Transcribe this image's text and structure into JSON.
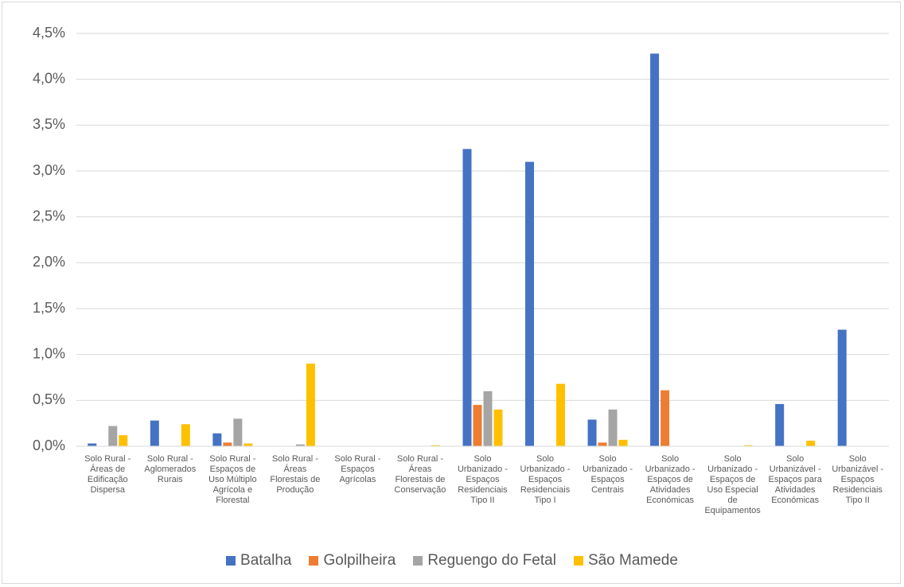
{
  "chart_data": {
    "type": "bar",
    "categories": [
      "Solo Rural - Áreas de Edificação Dispersa",
      "Solo Rural - Aglomerados Rurais",
      "Solo Rural - Espaços de Uso Múltiplo Agrícola e Florestal",
      "Solo Rural - Áreas Florestais de Produção",
      "Solo Rural - Espaços Agrícolas",
      "Solo Rural - Áreas Florestais de Conservação",
      "Solo Urbanizado - Espaços Residenciais Tipo II",
      "Solo Urbanizado - Espaços Residenciais Tipo I",
      "Solo Urbanizado - Espaços Centrais",
      "Solo Urbanizado - Espaços de Atividades Económicas",
      "Solo Urbanizado - Espaços de Uso Especial de Equipamentos",
      "Solo Urbanizável - Espaços para Atividades Económicas",
      "Solo Urbanizável - Espaços Residenciais Tipo II"
    ],
    "series": [
      {
        "name": "Batalha",
        "color": "#4472c4",
        "values": [
          0.03,
          0.28,
          0.14,
          0,
          0,
          0,
          3.24,
          3.1,
          0.29,
          4.28,
          0,
          0.46,
          1.27
        ]
      },
      {
        "name": "Golpilheira",
        "color": "#ed7d31",
        "values": [
          0,
          0,
          0.04,
          0,
          0,
          0,
          0.45,
          0,
          0.04,
          0.61,
          0,
          0,
          0
        ]
      },
      {
        "name": "Reguengo do Fetal",
        "color": "#a5a5a5",
        "values": [
          0.22,
          0,
          0.3,
          0.02,
          0,
          0,
          0.6,
          0,
          0.4,
          0,
          0,
          0,
          0
        ]
      },
      {
        "name": "São Mamede",
        "color": "#ffc000",
        "values": [
          0.12,
          0.24,
          0.03,
          0.9,
          0,
          0.01,
          0.4,
          0.68,
          0.07,
          0,
          0.01,
          0.06,
          0
        ]
      }
    ],
    "ylim": [
      0,
      4.5
    ],
    "yticks": [
      {
        "value": 0,
        "label": "0,0%"
      },
      {
        "value": 0.5,
        "label": "0,5%"
      },
      {
        "value": 1,
        "label": "1,0%"
      },
      {
        "value": 1.5,
        "label": "1,5%"
      },
      {
        "value": 2,
        "label": "2,0%"
      },
      {
        "value": 2.5,
        "label": "2,5%"
      },
      {
        "value": 3,
        "label": "3,0%"
      },
      {
        "value": 3.5,
        "label": "3,5%"
      },
      {
        "value": 4,
        "label": "4,0%"
      },
      {
        "value": 4.5,
        "label": "4,5%"
      }
    ],
    "grid": true,
    "legend": "bottom"
  }
}
